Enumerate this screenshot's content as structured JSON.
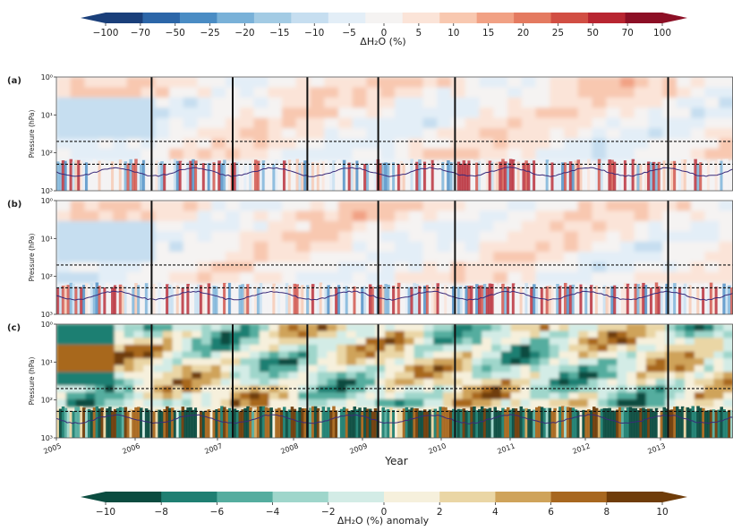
{
  "figure": {
    "xlabel": "Year",
    "ylabel": "Pressure (hPa)",
    "years": [
      "2005",
      "2006",
      "2007",
      "2008",
      "2009",
      "2010",
      "2011",
      "2012",
      "2013"
    ],
    "y_ticks": [
      "10⁰",
      "10¹",
      "10²",
      "10³"
    ]
  },
  "colorbar_top": {
    "label": "ΔH₂O (%)",
    "ticks": [
      "−100",
      "−70",
      "−50",
      "−25",
      "−20",
      "−15",
      "−10",
      "−5",
      "0",
      "5",
      "10",
      "15",
      "20",
      "25",
      "50",
      "70",
      "100"
    ],
    "colors": [
      "#1a3f7a",
      "#2c66a8",
      "#4a8cc4",
      "#79b1d8",
      "#a3cbe4",
      "#c6def0",
      "#e3eef7",
      "#f5f3f2",
      "#fbe4d8",
      "#f8c8b0",
      "#f1a184",
      "#e47a60",
      "#d14e43",
      "#b82531",
      "#8c0f25"
    ]
  },
  "colorbar_bottom": {
    "label": "ΔH₂O (%) anomaly",
    "ticks": [
      "−10",
      "−8",
      "−6",
      "−4",
      "−2",
      "0",
      "2",
      "4",
      "6",
      "8",
      "10"
    ],
    "colors": [
      "#0b4c40",
      "#1f7f72",
      "#55ad9f",
      "#9fd6cb",
      "#d3ece6",
      "#f6f0dc",
      "#ead6a5",
      "#cfa35a",
      "#a8671f",
      "#6f3c09"
    ]
  },
  "chart_data": [
    {
      "type": "heatmap",
      "panel": "(a)",
      "ylabel": "Pressure (hPa)",
      "yscale": "log",
      "ylim": [
        1000,
        1
      ],
      "reference_lines_hPa": [
        50,
        200
      ],
      "year_ticks": [
        2005,
        2006,
        2007,
        2008,
        2009,
        2010,
        2011,
        2012,
        2013
      ],
      "vertical_lines_year": [
        2006.2,
        2007.2,
        2008.2,
        2009.2,
        2010.2,
        2013.1
      ],
      "colorbar": "ΔH₂O (%)"
    },
    {
      "type": "heatmap",
      "panel": "(b)",
      "ylabel": "Pressure (hPa)",
      "yscale": "log",
      "ylim": [
        1000,
        1
      ],
      "reference_lines_hPa": [
        50,
        200
      ],
      "year_ticks": [
        2005,
        2006,
        2007,
        2008,
        2009,
        2010,
        2011,
        2012,
        2013
      ],
      "vertical_lines_year": [
        2006.2,
        2009.2,
        2010.2,
        2013.1
      ],
      "colorbar": "ΔH₂O (%)"
    },
    {
      "type": "heatmap",
      "panel": "(c)",
      "ylabel": "Pressure (hPa)",
      "xlabel": "Year",
      "yscale": "log",
      "ylim": [
        1000,
        1
      ],
      "reference_lines_hPa": [
        50,
        200
      ],
      "year_ticks": [
        2005,
        2006,
        2007,
        2008,
        2009,
        2010,
        2011,
        2012,
        2013
      ],
      "vertical_lines_year": [
        2006.2,
        2007.2,
        2008.2,
        2009.2,
        2010.2,
        2013.1
      ],
      "colorbar": "ΔH₂O (%) anomaly"
    }
  ]
}
